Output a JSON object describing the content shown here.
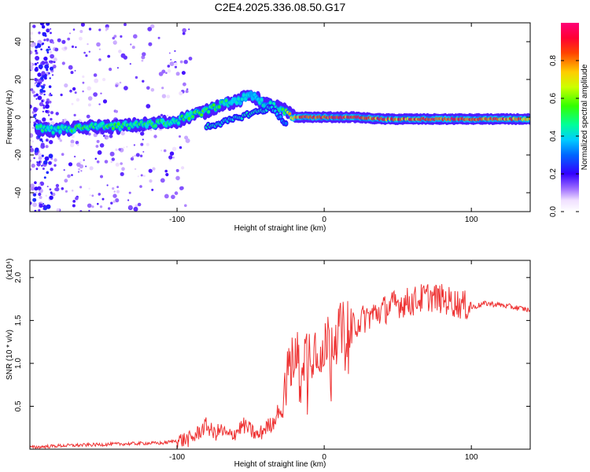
{
  "title": "C2E4.2025.336.08.50.G17",
  "chart_data": [
    {
      "type": "heatmap",
      "xlabel": "Height of straight line (km)",
      "ylabel": "Frequency (Hz)",
      "xlim": [
        -200,
        140
      ],
      "ylim": [
        -50,
        50
      ],
      "xticks": [
        -100,
        0,
        100
      ],
      "yticks": [
        -40,
        -20,
        0,
        20,
        40
      ],
      "colorbar": {
        "label": "Normalized spectral amplitude",
        "range": [
          0.0,
          1.0
        ],
        "ticks": [
          "0.0",
          "0.2",
          "0.4",
          "0.6",
          "0.8"
        ]
      },
      "ridge": [
        {
          "x": -195,
          "y": -6,
          "a": 0.5
        },
        {
          "x": -185,
          "y": -7,
          "a": 0.45
        },
        {
          "x": -170,
          "y": -6,
          "a": 0.55
        },
        {
          "x": -155,
          "y": -5,
          "a": 0.5
        },
        {
          "x": -140,
          "y": -5,
          "a": 0.55
        },
        {
          "x": -125,
          "y": -4,
          "a": 0.5
        },
        {
          "x": -110,
          "y": -3,
          "a": 0.55
        },
        {
          "x": -100,
          "y": -2,
          "a": 0.5
        },
        {
          "x": -90,
          "y": 1,
          "a": 0.55
        },
        {
          "x": -80,
          "y": 3,
          "a": 0.55
        },
        {
          "x": -70,
          "y": 7,
          "a": 0.5
        },
        {
          "x": -60,
          "y": 8,
          "a": 0.45
        },
        {
          "x": -50,
          "y": 12,
          "a": 0.4
        },
        {
          "x": -40,
          "y": 7,
          "a": 0.45
        },
        {
          "x": -30,
          "y": 5,
          "a": 0.5
        },
        {
          "x": -20,
          "y": 0,
          "a": 0.9
        },
        {
          "x": 0,
          "y": 0,
          "a": 0.95
        },
        {
          "x": 20,
          "y": 0,
          "a": 0.95
        },
        {
          "x": 40,
          "y": -1,
          "a": 0.9
        },
        {
          "x": 60,
          "y": -1,
          "a": 0.9
        },
        {
          "x": 80,
          "y": -1,
          "a": 0.95
        },
        {
          "x": 100,
          "y": -1,
          "a": 0.95
        },
        {
          "x": 120,
          "y": -1,
          "a": 0.9
        },
        {
          "x": 140,
          "y": -1,
          "a": 0.85
        }
      ],
      "secondary_ridge": [
        {
          "x": -80,
          "y": -5,
          "a": 0.45
        },
        {
          "x": -65,
          "y": -2,
          "a": 0.4
        },
        {
          "x": -50,
          "y": 2,
          "a": 0.45
        },
        {
          "x": -35,
          "y": 5,
          "a": 0.4
        },
        {
          "x": -25,
          "y": -5,
          "a": 0.3
        }
      ]
    },
    {
      "type": "line",
      "xlabel": "Height of straight line (km)",
      "ylabel": "SNR (10 * v/v)",
      "yscale_label": "(x10⁴)",
      "xlim": [
        -200,
        140
      ],
      "ylim": [
        0,
        2.2
      ],
      "xticks": [
        -100,
        0,
        100
      ],
      "yticks": [
        0.5,
        1.0,
        1.5,
        2.0
      ],
      "color": "#ee3333",
      "series": [
        {
          "name": "SNR",
          "x": [
            -200,
            -180,
            -160,
            -140,
            -120,
            -110,
            -100,
            -90,
            -85,
            -80,
            -75,
            -70,
            -65,
            -60,
            -55,
            -50,
            -45,
            -40,
            -35,
            -30,
            -25,
            -20,
            -15,
            -10,
            -5,
            0,
            5,
            10,
            15,
            20,
            30,
            40,
            50,
            60,
            70,
            80,
            90,
            100,
            110,
            120,
            130,
            140
          ],
          "y": [
            0.02,
            0.04,
            0.05,
            0.06,
            0.07,
            0.07,
            0.1,
            0.12,
            0.2,
            0.28,
            0.18,
            0.22,
            0.15,
            0.2,
            0.28,
            0.22,
            0.15,
            0.25,
            0.3,
            0.5,
            0.9,
            1.05,
            1.1,
            1.15,
            1.2,
            1.25,
            1.3,
            1.35,
            1.4,
            1.45,
            1.55,
            1.62,
            1.7,
            1.72,
            1.78,
            1.75,
            1.7,
            1.65,
            1.7,
            1.68,
            1.65,
            1.62
          ]
        }
      ]
    }
  ]
}
